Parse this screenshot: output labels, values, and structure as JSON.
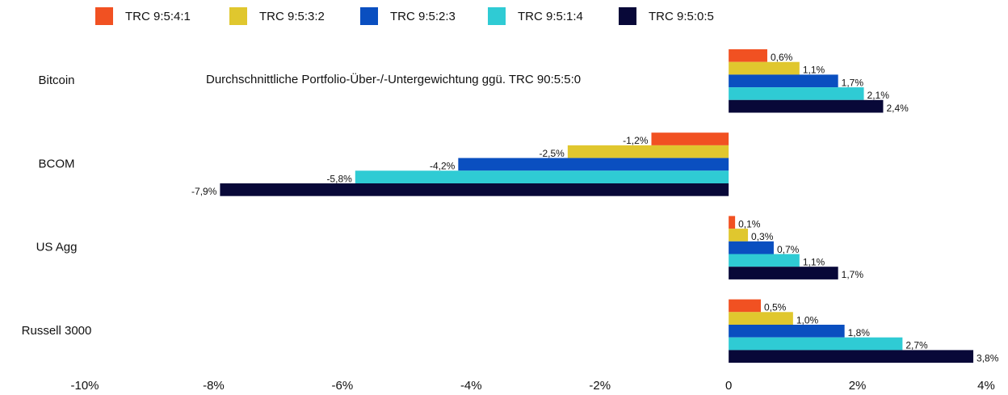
{
  "chart_data": {
    "type": "bar",
    "orientation": "horizontal",
    "annotation": "Durchschnittliche Portfolio-Über-/-Untergewichtung ggü. TRC 90:5:5:0",
    "categories": [
      "Bitcoin",
      "BCOM",
      "US Agg",
      "Russell 3000"
    ],
    "series": [
      {
        "name": "TRC 9:5:4:1",
        "color": "#f15122",
        "values": [
          0.6,
          -1.2,
          0.1,
          0.5
        ],
        "value_labels": [
          "0,6%",
          "-1,2%",
          "0,1%",
          "0,5%"
        ]
      },
      {
        "name": "TRC 9:5:3:2",
        "color": "#e0c72e",
        "values": [
          1.1,
          -2.5,
          0.3,
          1.0
        ],
        "value_labels": [
          "1,1%",
          "-2,5%",
          "0,3%",
          "1,0%"
        ]
      },
      {
        "name": "TRC 9:5:2:3",
        "color": "#0a4fc0",
        "values": [
          1.7,
          -4.2,
          0.7,
          1.8
        ],
        "value_labels": [
          "1,7%",
          "-4,2%",
          "0,7%",
          "1,8%"
        ]
      },
      {
        "name": "TRC 9:5:1:4",
        "color": "#2fcbd4",
        "values": [
          2.1,
          -5.8,
          1.1,
          2.7
        ],
        "value_labels": [
          "2,1%",
          "-5,8%",
          "1,1%",
          "2,7%"
        ]
      },
      {
        "name": "TRC 9:5:0:5",
        "color": "#080838",
        "values": [
          2.4,
          -7.9,
          1.7,
          3.8
        ],
        "value_labels": [
          "2,4%",
          "-7,9%",
          "1,7%",
          "3,8%"
        ]
      }
    ],
    "xlim": [
      -10,
      4
    ],
    "xticks": [
      {
        "value": -10,
        "label": "-10%"
      },
      {
        "value": -8,
        "label": "-8%"
      },
      {
        "value": -6,
        "label": "-6%"
      },
      {
        "value": -4,
        "label": "-4%"
      },
      {
        "value": -2,
        "label": "-2%"
      },
      0,
      {
        "value": 2,
        "label": "2%"
      },
      {
        "value": 4,
        "label": "4%"
      }
    ],
    "legend": "top",
    "grid": false
  }
}
